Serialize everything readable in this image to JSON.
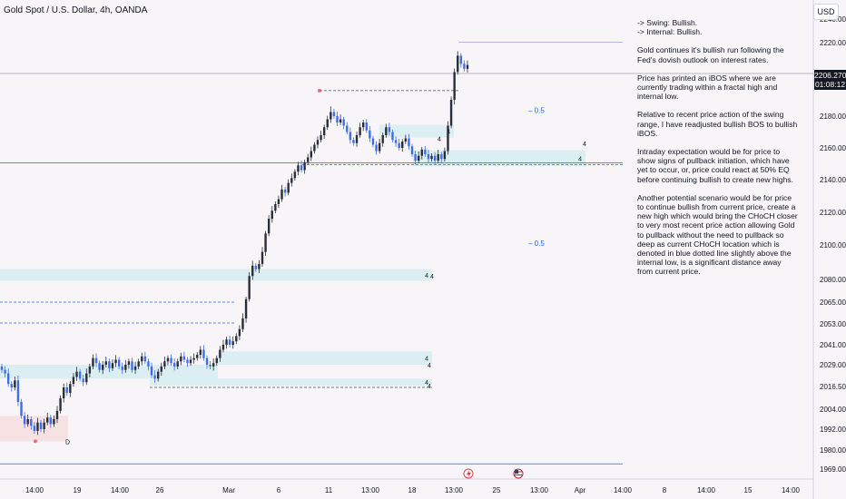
{
  "header": {
    "symbol_title": "Gold Spot / U.S. Dollar, 4h, OANDA",
    "currency_button": "USD"
  },
  "analysis": {
    "swing_bias": "-> Swing:  Bullish.",
    "internal_bias": "-> Internal:  Bullish.",
    "paragraphs": [
      "Gold continues it's bullish run following the Fed's dovish outlook on interest rates.",
      "Price has printed an iBOS where we are currently trading within a fractal high and internal low.",
      "Relative to recent price action of the swing range, I have readjusted bullish BOS to bullish iBOS.",
      "Intraday expectation would be for price to show signs of pullback initiation, which have yet to occur, or, price could react at 50% EQ before continuing bullish to create new highs.",
      "Another potential scenario would be for price to continue bullish from current price, create a new high which would bring the CHoCH closer to very most recent price action allowing Gold to pullback without the need to pullback so deep as current CHoCH location which is denoted in blue dotted line slightly above the internal low, is a significant distance away from current price."
    ]
  },
  "price_tag": {
    "price": "2206.270",
    "countdown": "01:08:12"
  },
  "colors": {
    "up": "#2a2e39",
    "down": "#3d6ee8",
    "zone": "#d9edf1",
    "zone_red": "#f6dfe2",
    "level_line": "#2962ff",
    "eq_label": "#2962ff",
    "background": "#f7f5f8"
  },
  "chart_data": {
    "type": "candlestick",
    "title": "Gold Spot / U.S. Dollar, 4h, OANDA",
    "currency": "USD",
    "y_axis": {
      "ticks": [
        2240.0,
        2220.0,
        2200.0,
        2180.0,
        2160.0,
        2140.0,
        2120.0,
        2100.0,
        2080.0,
        2065.0,
        2053.0,
        2041.0,
        2029.0,
        2016.5,
        2004.0,
        1992.0,
        1980.0,
        1969.0
      ],
      "tick_labels": [
        "2240.000",
        "2220.000",
        "2200.000",
        "2180.000",
        "2160.000",
        "2140.000",
        "2120.000",
        "2100.000",
        "2080.000",
        "2065.000",
        "2053.000",
        "2041.000",
        "2029.000",
        "2016.500",
        "2004.000",
        "1992.000",
        "1980.000",
        "1969.000"
      ],
      "scale": "log",
      "range": [
        1965,
        2245
      ]
    },
    "x_axis": {
      "tick_labels": [
        "14:00",
        "19",
        "14:00",
        "26",
        "Mar",
        "6",
        "11",
        "13:00",
        "18",
        "13:00",
        "25",
        "13:00",
        "Apr",
        "14:00",
        "8",
        "14:00",
        "15",
        "14:00"
      ]
    },
    "candles": {
      "note": "approximate 4h OHLC path read from the plot, oldest first",
      "close": [
        2026,
        2024,
        2018,
        2016,
        2020,
        2008,
        2000,
        1995,
        1998,
        1994,
        1991,
        1996,
        1992,
        1996,
        1999,
        1995,
        1998,
        2003,
        2010,
        2016,
        2013,
        2018,
        2022,
        2025,
        2021,
        2019,
        2024,
        2028,
        2033,
        2030,
        2026,
        2029,
        2031,
        2027,
        2030,
        2032,
        2028,
        2026,
        2029,
        2031,
        2026,
        2028,
        2031,
        2034,
        2031,
        2028,
        2023,
        2021,
        2025,
        2028,
        2031,
        2033,
        2030,
        2028,
        2031,
        2034,
        2032,
        2030,
        2032,
        2033,
        2035,
        2038,
        2033,
        2029,
        2028,
        2030,
        2033,
        2038,
        2041,
        2044,
        2041,
        2043,
        2046,
        2050,
        2056,
        2067,
        2082,
        2088,
        2086,
        2089,
        2096,
        2107,
        2116,
        2121,
        2125,
        2128,
        2134,
        2132,
        2138,
        2141,
        2145,
        2149,
        2146,
        2151,
        2154,
        2158,
        2162,
        2165,
        2168,
        2173,
        2178,
        2182,
        2180,
        2176,
        2178,
        2174,
        2170,
        2165,
        2163,
        2168,
        2173,
        2176,
        2171,
        2166,
        2162,
        2158,
        2163,
        2168,
        2173,
        2170,
        2165,
        2163,
        2160,
        2164,
        2166,
        2161,
        2156,
        2152,
        2155,
        2159,
        2156,
        2153,
        2155,
        2152,
        2156,
        2153,
        2158,
        2174,
        2188,
        2202,
        2212,
        2207,
        2204,
        2206.27
      ],
      "open_offset_note": "open equals previous close"
    },
    "zones": [
      {
        "label": "4",
        "top": 2158.5,
        "bottom": 2148.5
      },
      {
        "label": "4",
        "top": 2174.5,
        "bottom": 2166.5
      },
      {
        "label": "4",
        "top": 2086,
        "bottom": 2079
      },
      {
        "label": "4",
        "top": 2037,
        "bottom": 2029
      },
      {
        "label": "4",
        "top": 2021,
        "bottom": 2017
      },
      {
        "label": "",
        "top": 2029,
        "bottom": 2021
      },
      {
        "label": "",
        "top": 2000,
        "bottom": 1985
      }
    ],
    "levels": [
      {
        "name": "internal low",
        "value": 2150.5
      },
      {
        "name": "CHoCH (blue dotted)",
        "value": 2149.5
      },
      {
        "name": "fractal high",
        "value": 2220.5
      },
      {
        "name": "iBOS",
        "value": 2192.5
      },
      {
        "name": "lower BOS",
        "value": 2016
      },
      {
        "name": "range low",
        "value": 1972
      }
    ],
    "equilibrium_labels": [
      {
        "label": "0.5",
        "value": 2183
      },
      {
        "label": "0.5",
        "value": 2101
      }
    ],
    "structure_markers": [
      {
        "label": "4",
        "value": 2166
      },
      {
        "label": "4",
        "value": 2163
      },
      {
        "label": "4",
        "value": 2082
      },
      {
        "label": "4",
        "value": 2029
      },
      {
        "label": "4",
        "value": 2017
      },
      {
        "label": "D",
        "value": 1985
      }
    ]
  }
}
